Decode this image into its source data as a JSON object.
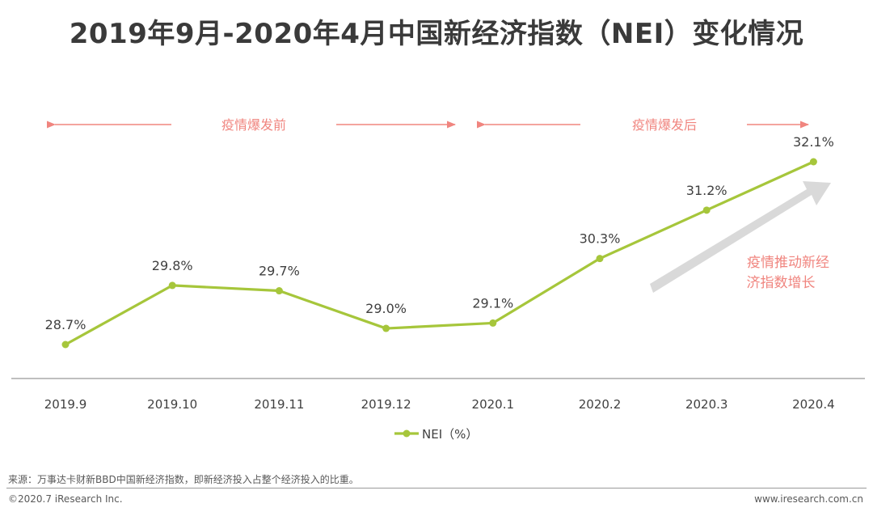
{
  "page": {
    "title": "2019年9月-2020年4月中国新经济指数（NEI）变化情况",
    "source": "来源：万事达卡财新BBD中国新经济指数，即新经济投入占整个经济投入的比重。",
    "copyright": "©2020.7 iResearch Inc.",
    "website": "www.iresearch.com.cn"
  },
  "chart_data": {
    "type": "line",
    "title": "2019年9月-2020年4月中国新经济指数（NEI）变化情况",
    "categories": [
      "2019.9",
      "2019.10",
      "2019.11",
      "2019.12",
      "2020.1",
      "2020.2",
      "2020.3",
      "2020.4"
    ],
    "series": [
      {
        "name": "NEI（%）",
        "values": [
          28.7,
          29.8,
          29.7,
          29.0,
          29.1,
          30.3,
          31.2,
          32.1
        ],
        "labels": [
          "28.7%",
          "29.8%",
          "29.7%",
          "29.0%",
          "29.1%",
          "30.3%",
          "31.2%",
          "32.1%"
        ]
      }
    ],
    "ylim": [
      27.0,
      33.0
    ],
    "grid": false,
    "legend": "bottom",
    "annotations": {
      "before": "疫情爆发前",
      "after": "疫情爆发后",
      "trend": [
        "疫情推动新经",
        "济指数增长"
      ]
    },
    "colors": {
      "line": "#a6c63b",
      "annotation": "#f0857f",
      "trend_arrow": "#d9d9d9",
      "axis": "#7f7f7f"
    }
  }
}
